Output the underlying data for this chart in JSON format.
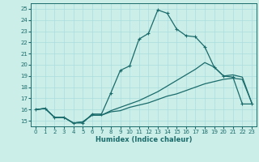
{
  "xlabel": "Humidex (Indice chaleur)",
  "ylabel": "",
  "bg_color": "#cceee8",
  "grid_color": "#aadddd",
  "line_color": "#1a6b6b",
  "xlim": [
    -0.5,
    23.5
  ],
  "ylim": [
    14.5,
    25.5
  ],
  "xticks": [
    0,
    1,
    2,
    3,
    4,
    5,
    6,
    7,
    8,
    9,
    10,
    11,
    12,
    13,
    14,
    15,
    16,
    17,
    18,
    19,
    20,
    21,
    22,
    23
  ],
  "yticks": [
    15,
    16,
    17,
    18,
    19,
    20,
    21,
    22,
    23,
    24,
    25
  ],
  "line1_x": [
    0,
    1,
    2,
    3,
    4,
    5,
    6,
    7,
    8,
    9,
    10,
    11,
    12,
    13,
    14,
    15,
    16,
    17,
    18,
    19,
    20,
    21,
    22,
    23
  ],
  "line1_y": [
    16.0,
    16.1,
    15.3,
    15.3,
    14.8,
    14.8,
    15.6,
    15.6,
    17.5,
    19.5,
    19.9,
    22.3,
    22.8,
    24.9,
    24.6,
    23.2,
    22.6,
    22.5,
    21.6,
    19.8,
    19.0,
    18.9,
    16.5,
    16.5
  ],
  "line2_x": [
    0,
    1,
    2,
    3,
    4,
    5,
    6,
    7,
    8,
    9,
    10,
    11,
    12,
    13,
    14,
    15,
    16,
    17,
    18,
    19,
    20,
    21,
    22,
    23
  ],
  "line2_y": [
    16.0,
    16.1,
    15.3,
    15.3,
    14.8,
    14.9,
    15.5,
    15.5,
    15.9,
    16.2,
    16.5,
    16.8,
    17.2,
    17.6,
    18.1,
    18.6,
    19.1,
    19.6,
    20.2,
    19.8,
    19.0,
    19.1,
    18.9,
    16.6
  ],
  "line3_x": [
    0,
    1,
    2,
    3,
    4,
    5,
    6,
    7,
    8,
    9,
    10,
    11,
    12,
    13,
    14,
    15,
    16,
    17,
    18,
    19,
    20,
    21,
    22,
    23
  ],
  "line3_y": [
    16.0,
    16.1,
    15.3,
    15.3,
    14.8,
    14.9,
    15.5,
    15.5,
    15.8,
    15.9,
    16.2,
    16.4,
    16.6,
    16.9,
    17.2,
    17.4,
    17.7,
    18.0,
    18.3,
    18.5,
    18.7,
    18.8,
    18.7,
    16.6
  ]
}
